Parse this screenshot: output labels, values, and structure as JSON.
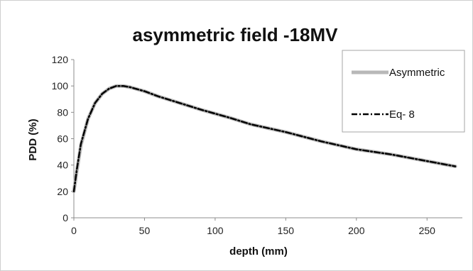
{
  "chart_data": {
    "type": "line",
    "title": "asymmetric field -18MV",
    "xlabel": "depth (mm)",
    "ylabel": "PDD (%)",
    "xlim": [
      0,
      275
    ],
    "ylim": [
      0,
      120
    ],
    "xticks": [
      "0",
      "50",
      "100",
      "150",
      "200",
      "250"
    ],
    "yticks": [
      "0",
      "20",
      "40",
      "60",
      "80",
      "100",
      "120"
    ],
    "grid": false,
    "legend_position": "top-right",
    "series": [
      {
        "name": "Asymmetric",
        "color": "#b8b8b8",
        "style": "solid",
        "x": [
          0,
          2,
          5,
          10,
          15,
          20,
          25,
          30,
          35,
          40,
          50,
          60,
          75,
          90,
          100,
          110,
          125,
          150,
          175,
          200,
          225,
          250,
          270
        ],
        "y": [
          20,
          35,
          55,
          75,
          87,
          94,
          98,
          100,
          100,
          99,
          96,
          92,
          87,
          82,
          79,
          76,
          71,
          65,
          58,
          52,
          48,
          43,
          39
        ]
      },
      {
        "name": "Eq- 8",
        "color": "#000000",
        "style": "dash-dot",
        "x": [
          0,
          2,
          5,
          10,
          15,
          20,
          25,
          30,
          35,
          40,
          50,
          60,
          75,
          90,
          100,
          110,
          125,
          150,
          175,
          200,
          225,
          250,
          270
        ],
        "y": [
          20,
          36,
          56,
          75,
          87,
          94,
          98,
          100,
          100,
          99,
          96,
          92,
          87,
          82,
          79,
          76,
          71,
          65,
          58,
          52,
          48,
          43,
          39
        ]
      }
    ]
  }
}
